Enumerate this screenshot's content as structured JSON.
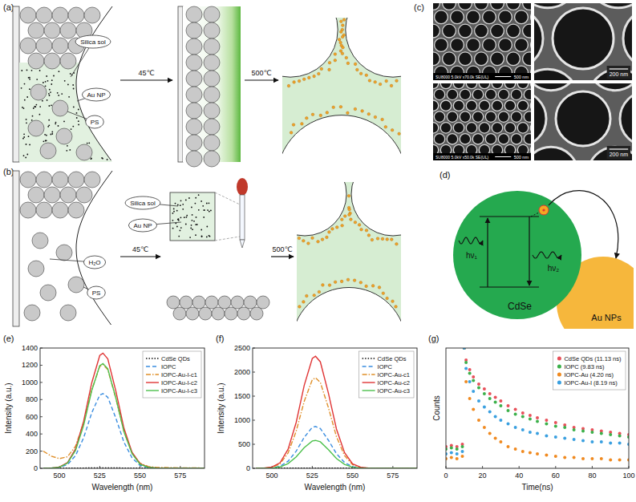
{
  "panels": {
    "a": {
      "label": "(a)",
      "silica_sol": "Silica sol",
      "au_np": "Au NP",
      "ps": "PS",
      "step1": "45℃",
      "step2": "500℃"
    },
    "b": {
      "label": "(b)",
      "silica_sol": "Silica sol",
      "au_np": "Au NP",
      "water": "H₂O",
      "ps": "PS",
      "step1": "45℃",
      "step2": "500℃"
    },
    "c": {
      "label": "(c)",
      "images": [
        {
          "info": "SU8000 5.0kV x70.0k SE(UL)",
          "scale": "500 nm"
        },
        {
          "scale": "200 nm"
        },
        {
          "info": "SU8000 5.0kV x50.0k SE(UL)",
          "scale": "500 nm"
        },
        {
          "scale": "200 nm"
        }
      ]
    },
    "d": {
      "label": "(d)",
      "dot": "CdSe",
      "metal": "Au NPs",
      "absorb": "hν₁",
      "emit": "hν₂"
    }
  },
  "chart_data": [
    {
      "type": "line",
      "title": "(e)",
      "x_label": "Wavelength (nm)",
      "y_label": "Intensity (a.u.)",
      "x": [
        490,
        495,
        500,
        505,
        510,
        515,
        520,
        525,
        527,
        530,
        535,
        540,
        545,
        550,
        555,
        560,
        570,
        580,
        590
      ],
      "xlim": [
        488,
        590
      ],
      "xticks": [
        500,
        525,
        550,
        575
      ],
      "ylim": [
        0,
        1400
      ],
      "yticks": [
        0,
        200,
        400,
        600,
        800,
        1000,
        1200,
        1400
      ],
      "legend": "upper right",
      "series": [
        {
          "name": "CdSe QDs",
          "color": "#111111",
          "line_style": "dotted",
          "values": [
            4,
            4,
            4,
            4,
            4,
            4,
            5,
            5,
            5,
            5,
            5,
            4,
            4,
            4,
            4,
            4,
            4,
            4,
            4
          ]
        },
        {
          "name": "IOPC",
          "color": "#3a8de0",
          "line_style": "dashed",
          "values": [
            0,
            2,
            10,
            44,
            148,
            357,
            644,
            853,
            870,
            827,
            583,
            305,
            122,
            35,
            9,
            2,
            0,
            0,
            0
          ]
        },
        {
          "name": "IOPC-Au-I-c1",
          "color": "#e0902a",
          "line_style": "dashdot",
          "values": [
            200,
            142,
            113,
            134,
            259,
            529,
            908,
            1186,
            1208,
            1148,
            813,
            431,
            180,
            59,
            22,
            11,
            7,
            5,
            4
          ]
        },
        {
          "name": "IOPC-Au-I-c2",
          "color": "#e03535",
          "line_style": "solid",
          "values": [
            0,
            3,
            15,
            67,
            228,
            549,
            992,
            1313,
            1340,
            1273,
            898,
            469,
            188,
            54,
            13,
            3,
            0,
            0,
            0
          ]
        },
        {
          "name": "IOPC-Au-I-c3",
          "color": "#4cc04c",
          "line_style": "solid",
          "values": [
            0,
            2,
            13,
            61,
            207,
            500,
            903,
            1196,
            1220,
            1159,
            817,
            427,
            171,
            49,
            12,
            2,
            0,
            0,
            0
          ]
        }
      ]
    },
    {
      "type": "line",
      "title": "(f)",
      "x_label": "Wavelength (nm)",
      "y_label": "Intensity (a.u.)",
      "x": [
        490,
        495,
        500,
        505,
        510,
        515,
        520,
        525,
        527,
        530,
        535,
        540,
        545,
        550,
        555,
        560,
        570,
        580,
        590
      ],
      "xlim": [
        488,
        590
      ],
      "xticks": [
        500,
        525,
        550,
        575
      ],
      "ylim": [
        0,
        2500
      ],
      "yticks": [
        0,
        500,
        1000,
        1500,
        2000,
        2500
      ],
      "legend": "upper right",
      "series": [
        {
          "name": "CdSe QDs",
          "color": "#111111",
          "line_style": "dotted",
          "values": [
            4,
            4,
            4,
            4,
            4,
            4,
            5,
            5,
            5,
            5,
            5,
            4,
            4,
            4,
            4,
            4,
            4,
            4,
            4
          ]
        },
        {
          "name": "IOPC",
          "color": "#3a8de0",
          "line_style": "dashed",
          "values": [
            0,
            2,
            10,
            44,
            148,
            357,
            644,
            853,
            870,
            827,
            583,
            305,
            122,
            35,
            9,
            2,
            0,
            0,
            0
          ]
        },
        {
          "name": "IOPC-Au-c1",
          "color": "#e0902a",
          "line_style": "dashdot",
          "values": [
            0,
            4,
            21,
            94,
            320,
            771,
            1391,
            1842,
            1880,
            1786,
            1260,
            658,
            263,
            75,
            19,
            4,
            0,
            0,
            0
          ]
        },
        {
          "name": "IOPC-Au-c2",
          "color": "#e03535",
          "line_style": "solid",
          "values": [
            0,
            5,
            26,
            117,
            396,
            955,
            1724,
            2283,
            2330,
            2214,
            1561,
            816,
            326,
            93,
            23,
            5,
            0,
            0,
            0
          ]
        },
        {
          "name": "IOPC-Au-c3",
          "color": "#4cc04c",
          "line_style": "solid",
          "values": [
            0,
            1,
            6,
            29,
            99,
            238,
            429,
            568,
            580,
            551,
            389,
            203,
            81,
            23,
            6,
            1,
            0,
            0,
            0
          ]
        }
      ]
    },
    {
      "type": "scatter",
      "title": "(g)",
      "x_label": "Time(ns)",
      "y_label": "Counts",
      "x": [
        0,
        3,
        6,
        9,
        10,
        11,
        13,
        15,
        18,
        21,
        24,
        27,
        30,
        34,
        38,
        42,
        46,
        50,
        55,
        60,
        65,
        70,
        75,
        80,
        85,
        90,
        95,
        100
      ],
      "xlim": [
        0,
        100
      ],
      "xticks": [
        0,
        20,
        40,
        60,
        80,
        100
      ],
      "ylim": [
        0,
        100
      ],
      "yticks": [],
      "tick_labels": "x",
      "legend": "upper right",
      "marker": "circle",
      "series": [
        {
          "name": "CdSe QDs (11.13 ns)",
          "color": "#e8505a",
          "values": [
            18,
            19,
            18,
            20,
            100,
            90,
            82,
            76,
            70,
            66,
            62,
            59,
            56,
            52,
            49,
            46,
            44,
            42,
            40,
            38,
            36,
            34,
            33,
            32,
            31,
            30,
            29,
            28
          ]
        },
        {
          "name": "IOPC (9.83 ns)",
          "color": "#3cb04a",
          "values": [
            16,
            17,
            16,
            18,
            100,
            88,
            79,
            73,
            67,
            62,
            58,
            55,
            52,
            48,
            45,
            43,
            41,
            39,
            37,
            35,
            34,
            32,
            31,
            30,
            29,
            28,
            27,
            26
          ]
        },
        {
          "name": "IOPC-Au (4.20 ns)",
          "color": "#f08a20",
          "values": [
            8,
            9,
            8,
            10,
            100,
            72,
            58,
            49,
            40,
            34,
            29,
            25,
            22,
            18,
            16,
            14,
            13,
            12,
            11,
            10,
            9,
            9,
            8,
            8,
            8,
            7,
            7,
            7
          ]
        },
        {
          "name": "IOPC-Au-I (8.19 ns)",
          "color": "#3aa0e0",
          "values": [
            12,
            13,
            12,
            14,
            100,
            83,
            72,
            64,
            56,
            51,
            47,
            43,
            40,
            37,
            34,
            32,
            30,
            29,
            27,
            26,
            25,
            24,
            23,
            22,
            22,
            21,
            21,
            20
          ]
        }
      ]
    }
  ]
}
